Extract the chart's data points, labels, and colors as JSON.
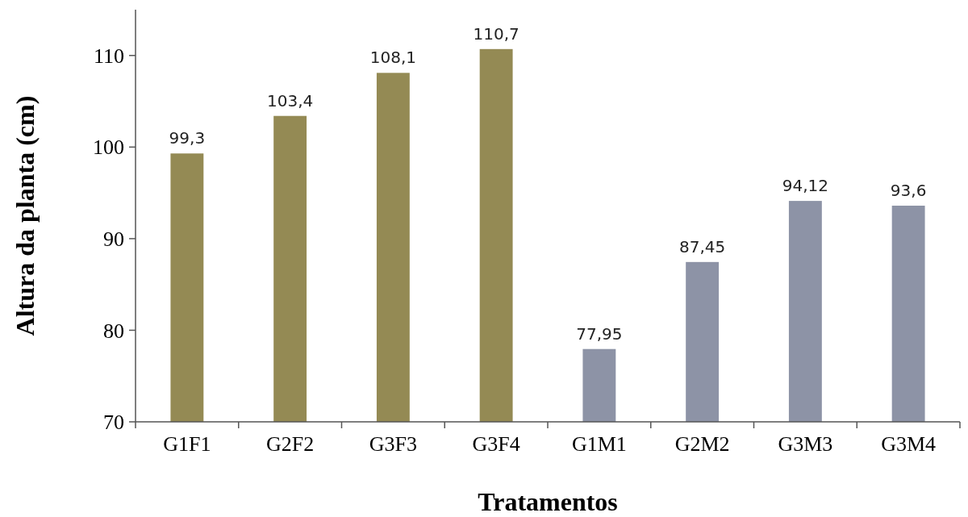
{
  "chart_data": {
    "type": "bar",
    "xlabel": "Tratamentos",
    "ylabel": "Altura da planta (cm)",
    "categories": [
      "G1F1",
      "G2F2",
      "G3F3",
      "G3F4",
      "G1M1",
      "G2M2",
      "G3M3",
      "G3M4"
    ],
    "values": [
      99.3,
      103.4,
      108.1,
      110.7,
      77.95,
      87.45,
      94.12,
      93.6
    ],
    "value_labels": [
      "99,3",
      "103,4",
      "108,1",
      "110,7",
      "77,95",
      "87,45",
      "94,12",
      "93,6"
    ],
    "colors": [
      "#948a54",
      "#948a54",
      "#948a54",
      "#948a54",
      "#8d93a6",
      "#8d93a6",
      "#8d93a6",
      "#8d93a6"
    ],
    "ylim": [
      70,
      115
    ],
    "yticks": [
      70,
      80,
      90,
      100,
      110
    ],
    "grid": false
  }
}
